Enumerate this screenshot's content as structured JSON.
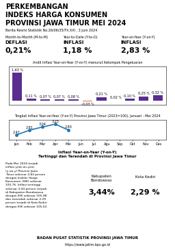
{
  "title": "PERKEMBANGAN\nINDEKS HARGA KONSUMEN\nPROVINSI JAWA TIMUR MEI 2024",
  "subtitle": "Berita Resmi Statistik No.26/06/35/Th.XXI , 3 Juni 2024",
  "annotations": [
    "Month-to-Month (M-to-M)",
    "DEFLASI",
    "0,21%",
    "Year-to-Date (Y-to-D)",
    "INFLASI",
    "1,18 %",
    "Year-on-Year (Y-on-Y)",
    "INFLASI",
    "2,83 %",
    "Inflasi Year-on-Year (Y-on-Y)\nTertinggi dan Terendah di Provinsi Jawa Timur",
    "Pada Mei 2024 terjadi\ninflasi year-on-year\n(y-on-y) Provinsi Jawa\nTimur sebesar 2,83 persen\ndengan Indeks Harga\nKonsumen (IHK) sebesar\n105,76. Inflasi tertinggi\nsebesar 3,44 persen terjadi\ndi Kabupaten Bondowoso\ndengan IHK sebesar 105,98\ndan terendah sebesar 2,29\npersen terjadi di Kota Kediri\ndengan IHK sebesar 105,02.",
    "Kabupaten\nBondowoso",
    "3,44%",
    "Kota Kediri",
    "2,29 %",
    "BADAN PUSAT STATISTIK PROVINSI JAWA TIMUR",
    "https://www.jatim.bps.go.id"
  ],
  "chart_data": [
    {
      "type": "bar",
      "title": "Andil Inflasi Year-on-Year (Y-on-Y) menurut Kelompok Pengeluaran",
      "categories": [
        null,
        null,
        null,
        null,
        null,
        null,
        null,
        null,
        null,
        null,
        null
      ],
      "values": [
        1.63,
        0.11,
        0.07,
        0.07,
        0.08,
        -0.03,
        0.21,
        0.02,
        0.1,
        0.25,
        0.32
      ],
      "value_labels": [
        "1,63 %",
        "0,11 %",
        "0,07 %",
        "0,07 %",
        "0,08 %",
        "-0,03 %",
        "0,21 %",
        "0,02 %",
        "0,10 %",
        "0,25 %",
        "0,32 %"
      ],
      "colors": [
        "#5b2d8e",
        "#5b2d8e",
        "#5b2d8e",
        "#5b2d8e",
        "#5b2d8e",
        "#e07040",
        "#5b2d8e",
        "#5b2d8e",
        "#5b2d8e",
        "#5b2d8e",
        "#5b2d8e"
      ],
      "data_labels": true,
      "ylim": [
        -0.25,
        2.0
      ],
      "tick_labels": false
    },
    {
      "type": "line",
      "title": "Tingkat Inflasi Year-on-Year (Y-on-Y) Provinsi Jawa Timur (2023=100), Januari - Mei 2024",
      "categories": [
        "Jan",
        "Feb",
        "Mar",
        "Apr",
        "Mei",
        "Jun",
        "Jul",
        "Agu",
        "Sep",
        "Okt",
        "Nov",
        "Des"
      ],
      "values": [
        2.47,
        2.81,
        3.04,
        3.25,
        2.83,
        null,
        null,
        null,
        null,
        null,
        null,
        null
      ],
      "value_labels": [
        "2,47",
        "2,81",
        "3,04",
        "3,25",
        "2,83",
        null,
        null,
        null,
        null,
        null,
        null,
        null
      ],
      "marker": "o",
      "data_labels": true,
      "ylim": [
        2.1,
        3.55
      ],
      "tick_labels": "x"
    }
  ]
}
